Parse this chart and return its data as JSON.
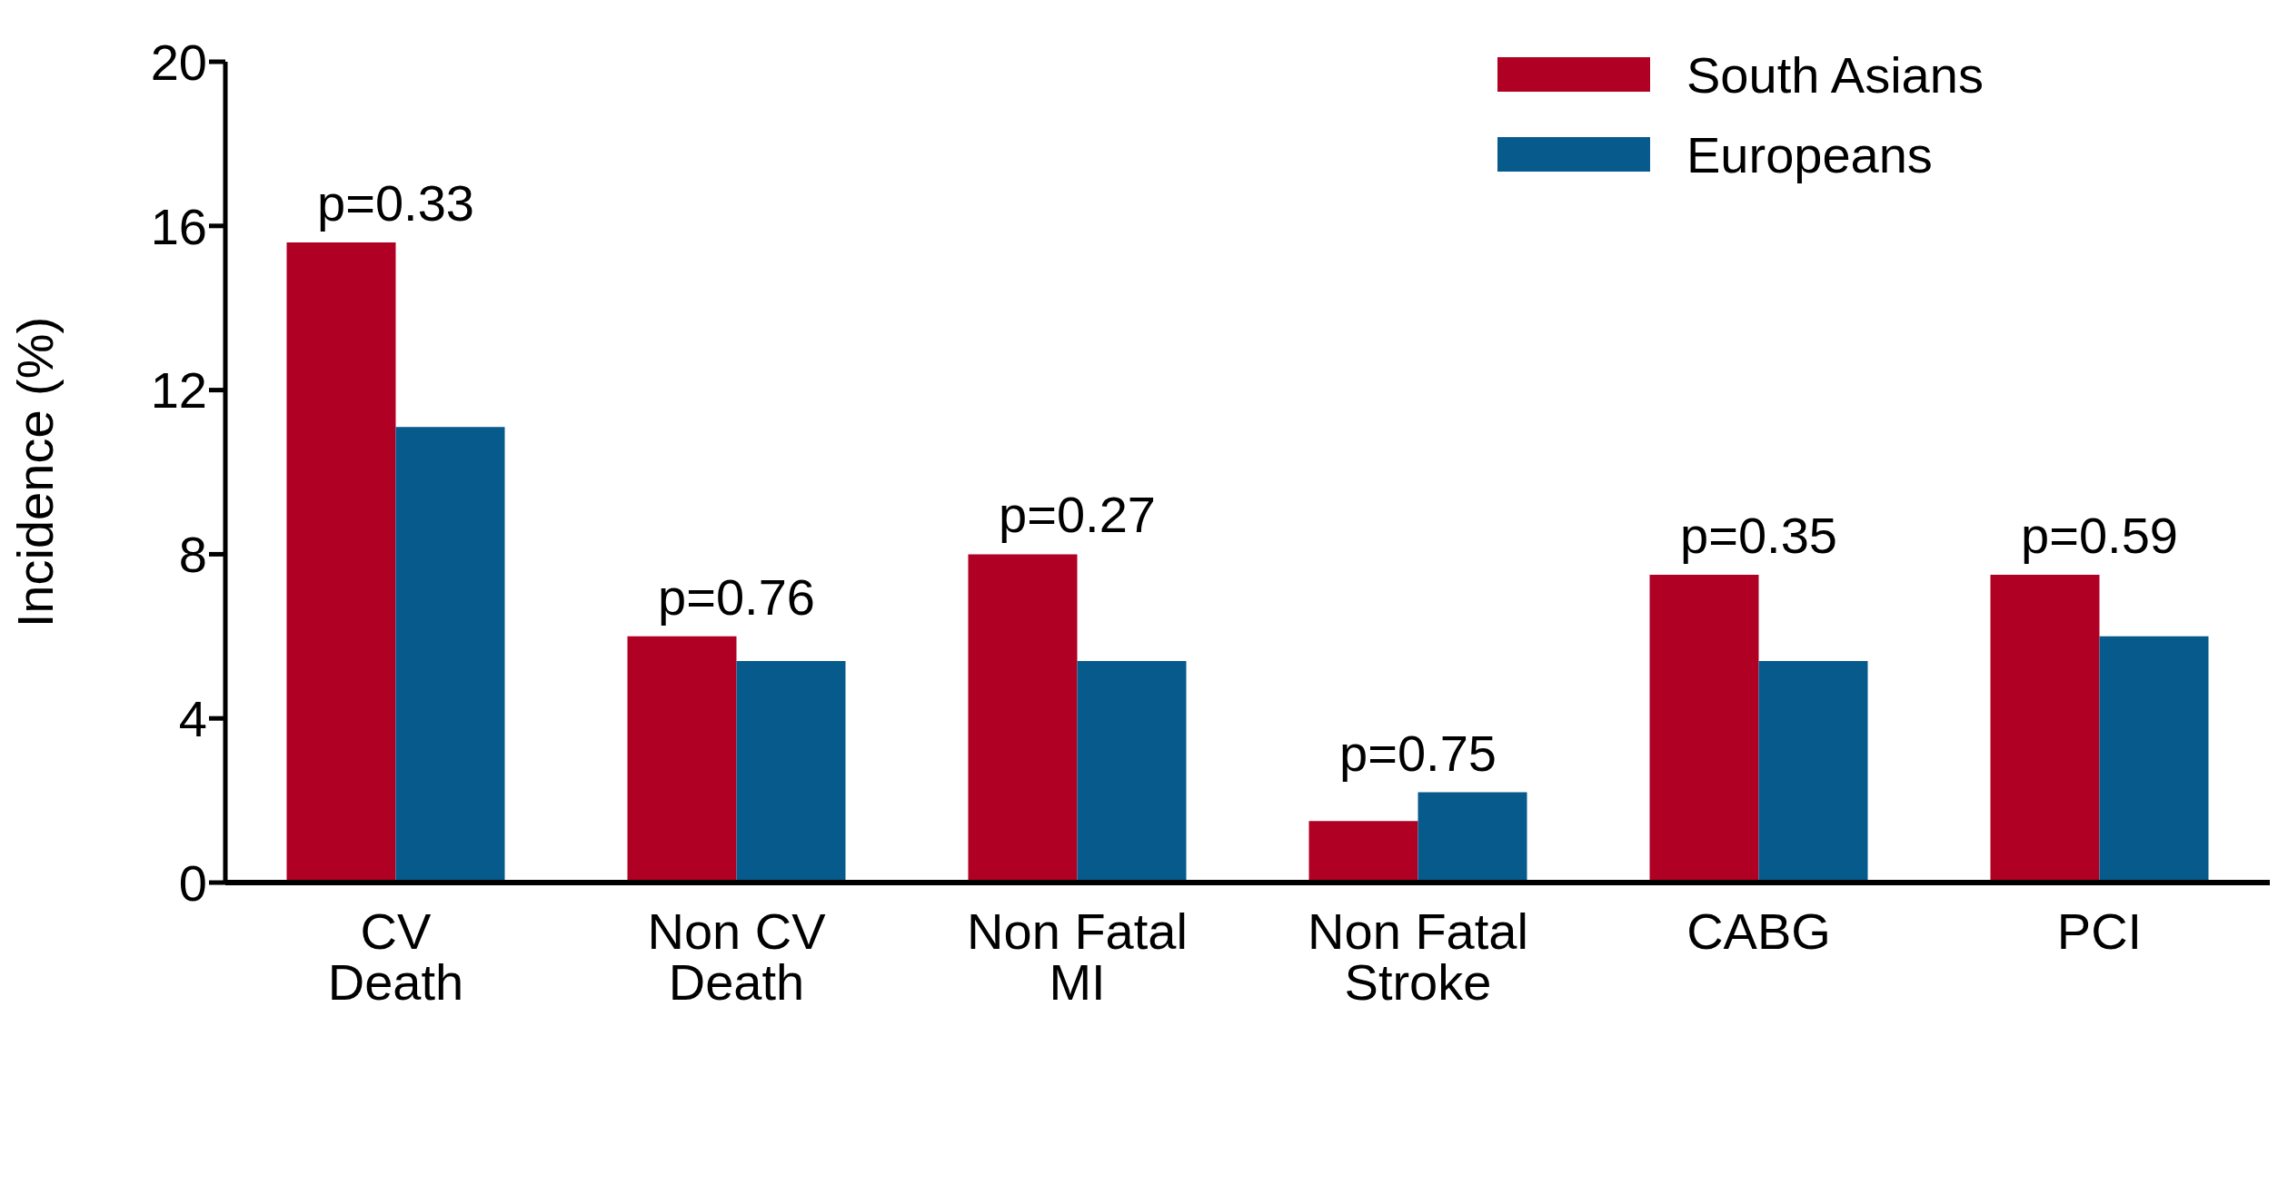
{
  "chart_data": {
    "type": "bar",
    "ylabel": "Incidence (%)",
    "categories": [
      "CV\nDeath",
      "Non CV\nDeath",
      "Non Fatal\nMI",
      "Non Fatal\nStroke",
      "CABG",
      "PCI"
    ],
    "series": [
      {
        "name": "South Asians",
        "color": "#b00024",
        "values": [
          15.6,
          6.0,
          8.0,
          1.5,
          7.5,
          7.5
        ]
      },
      {
        "name": "Europeans",
        "color": "#075a8c",
        "values": [
          11.1,
          5.4,
          5.4,
          2.2,
          5.4,
          6.0
        ]
      }
    ],
    "ylim": [
      0,
      20
    ],
    "yticks": [
      0,
      4,
      8,
      12,
      16,
      20
    ],
    "grid": false,
    "legend": "top right",
    "annotations": [
      {
        "text": "p=0.33",
        "x": "CV\nDeath",
        "y": 15.6
      },
      {
        "text": "p=0.76",
        "x": "Non CV\nDeath",
        "y": 6.0
      },
      {
        "text": "p=0.27",
        "x": "Non Fatal\nMI",
        "y": 8.0
      },
      {
        "text": "p=0.75",
        "x": "Non Fatal\nStroke",
        "y": 2.2
      },
      {
        "text": "p=0.35",
        "x": "CABG",
        "y": 7.5
      },
      {
        "text": "p=0.59",
        "x": "PCI",
        "y": 7.5
      }
    ]
  }
}
